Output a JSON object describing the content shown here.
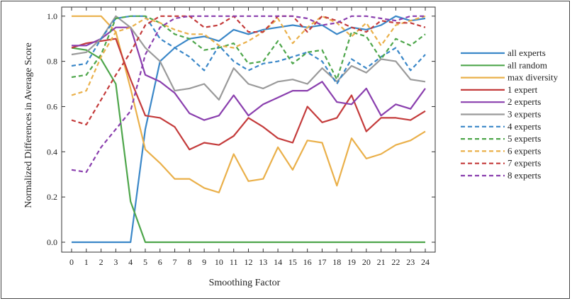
{
  "chart_data": {
    "type": "line",
    "xlabel": "Smoothing Factor",
    "ylabel": "Normalized Differences in Average Score",
    "xlim": [
      0,
      24
    ],
    "ylim": [
      0,
      1.04
    ],
    "x": [
      0,
      1,
      2,
      3,
      4,
      5,
      6,
      7,
      8,
      9,
      10,
      11,
      12,
      13,
      14,
      15,
      16,
      17,
      18,
      19,
      20,
      21,
      22,
      23,
      24
    ],
    "yticks": [
      "0.0",
      "0.2",
      "0.4",
      "0.6",
      "0.8",
      "1.0"
    ],
    "ytick_values": [
      0,
      0.2,
      0.4,
      0.6,
      0.8,
      1.0
    ],
    "xticks": [
      "0",
      "1",
      "2",
      "3",
      "4",
      "5",
      "6",
      "7",
      "8",
      "9",
      "10",
      "11",
      "12",
      "13",
      "14",
      "15",
      "16",
      "17",
      "18",
      "19",
      "20",
      "21",
      "22",
      "23",
      "24"
    ],
    "legend_position": "right",
    "grid": false,
    "series": [
      {
        "name": "all experts",
        "color": "#3a87c8",
        "dash": "solid",
        "values": [
          0,
          0,
          0,
          0,
          0,
          0.5,
          0.8,
          0.86,
          0.9,
          0.91,
          0.89,
          0.94,
          0.92,
          0.94,
          0.95,
          0.96,
          0.95,
          0.96,
          0.92,
          0.95,
          0.94,
          0.96,
          1.0,
          0.98,
          0.99
        ]
      },
      {
        "name": "all random",
        "color": "#4ea64b",
        "dash": "solid",
        "values": [
          0.86,
          0.85,
          0.81,
          0.7,
          0.18,
          0,
          0,
          0,
          0,
          0,
          0,
          0,
          0,
          0,
          0,
          0,
          0,
          0,
          0,
          0,
          0,
          0,
          0,
          0,
          0
        ]
      },
      {
        "name": "max diversity",
        "color": "#eab04a",
        "dash": "solid",
        "values": [
          1.0,
          1.0,
          1.0,
          0.93,
          0.68,
          0.41,
          0.35,
          0.28,
          0.28,
          0.24,
          0.22,
          0.39,
          0.27,
          0.28,
          0.42,
          0.32,
          0.45,
          0.44,
          0.25,
          0.46,
          0.37,
          0.39,
          0.43,
          0.45,
          0.49
        ]
      },
      {
        "name": "1 expert",
        "color": "#c43b3b",
        "dash": "solid",
        "values": [
          0.86,
          0.88,
          0.89,
          0.9,
          0.72,
          0.56,
          0.55,
          0.51,
          0.41,
          0.44,
          0.43,
          0.47,
          0.55,
          0.51,
          0.46,
          0.44,
          0.6,
          0.53,
          0.55,
          0.65,
          0.49,
          0.55,
          0.55,
          0.54,
          0.58
        ]
      },
      {
        "name": "2 experts",
        "color": "#8a3fae",
        "dash": "solid",
        "values": [
          0.87,
          0.87,
          0.9,
          0.95,
          0.95,
          0.74,
          0.71,
          0.66,
          0.57,
          0.54,
          0.56,
          0.65,
          0.56,
          0.61,
          0.64,
          0.67,
          0.67,
          0.71,
          0.62,
          0.61,
          0.68,
          0.56,
          0.61,
          0.59,
          0.68
        ]
      },
      {
        "name": "3 experts",
        "color": "#9a9a9a",
        "dash": "solid",
        "values": [
          0.83,
          0.84,
          0.9,
          1.0,
          0.95,
          0.86,
          0.8,
          0.67,
          0.68,
          0.7,
          0.63,
          0.77,
          0.7,
          0.68,
          0.71,
          0.72,
          0.7,
          0.77,
          0.71,
          0.78,
          0.75,
          0.81,
          0.8,
          0.72,
          0.71
        ]
      },
      {
        "name": "4 experts",
        "color": "#3a87c8",
        "dash": "dashed",
        "values": [
          0.78,
          0.79,
          0.9,
          0.99,
          1.0,
          1.0,
          0.9,
          0.86,
          0.82,
          0.76,
          0.87,
          0.8,
          0.76,
          0.79,
          0.8,
          0.82,
          0.84,
          0.8,
          0.7,
          0.81,
          0.77,
          0.82,
          0.86,
          0.76,
          0.83
        ]
      },
      {
        "name": "5 experts",
        "color": "#4ea64b",
        "dash": "dashed",
        "values": [
          0.73,
          0.74,
          0.83,
          0.99,
          1.0,
          1.0,
          0.97,
          0.92,
          0.9,
          0.85,
          0.86,
          0.88,
          0.79,
          0.8,
          0.89,
          0.79,
          0.84,
          0.85,
          0.72,
          0.93,
          0.91,
          0.81,
          0.9,
          0.87,
          0.92
        ]
      },
      {
        "name": "6 experts",
        "color": "#eab04a",
        "dash": "dashed",
        "values": [
          0.65,
          0.67,
          0.82,
          0.93,
          0.95,
          0.99,
          0.97,
          0.94,
          0.92,
          0.92,
          0.87,
          0.86,
          0.89,
          0.93,
          0.99,
          0.88,
          0.95,
          1.0,
          0.97,
          0.91,
          0.97,
          0.87,
          0.96,
          0.98,
          1.0
        ]
      },
      {
        "name": "7 experts",
        "color": "#c43b3b",
        "dash": "dashed",
        "values": [
          0.54,
          0.52,
          0.63,
          0.74,
          0.84,
          0.96,
          1.0,
          1.0,
          1.0,
          0.95,
          0.96,
          1.0,
          0.93,
          0.93,
          1.0,
          1.0,
          0.93,
          1.0,
          0.98,
          0.95,
          0.93,
          0.98,
          0.97,
          0.97,
          0.95
        ]
      },
      {
        "name": "8 experts",
        "color": "#8a3fae",
        "dash": "dashed",
        "values": [
          0.32,
          0.31,
          0.42,
          0.5,
          0.58,
          0.83,
          0.95,
          0.99,
          1.0,
          1.0,
          1.0,
          1.0,
          1.0,
          1.0,
          1.0,
          1.0,
          0.99,
          0.96,
          0.97,
          1.0,
          1.0,
          0.99,
          0.98,
          1.0,
          1.0
        ]
      }
    ]
  }
}
